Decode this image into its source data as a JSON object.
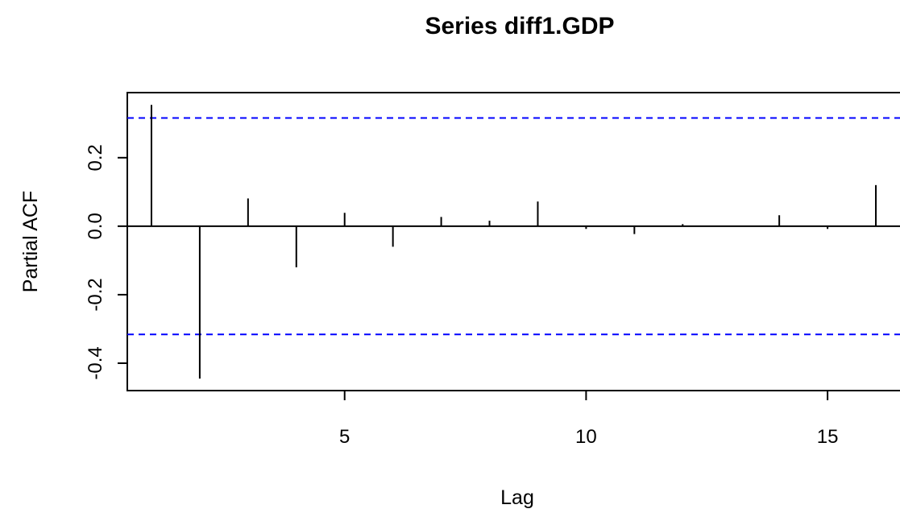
{
  "chart_data": {
    "type": "bar",
    "title": "Series  diff1.GDP",
    "xlabel": "Lag",
    "ylabel": "Partial ACF",
    "xlim": [
      0.5,
      16.5
    ],
    "ylim": [
      -0.48,
      0.39
    ],
    "x_ticks": [
      "5",
      "10",
      "15"
    ],
    "y_ticks": [
      "-0.4",
      "-0.2",
      "0.0",
      "0.2"
    ],
    "x": [
      1,
      2,
      3,
      4,
      5,
      6,
      7,
      8,
      9,
      10,
      11,
      12,
      13,
      14,
      15,
      16
    ],
    "values": [
      0.354,
      -0.445,
      0.081,
      -0.12,
      0.039,
      -0.06,
      0.027,
      0.016,
      0.072,
      -0.008,
      -0.023,
      0.006,
      0.0,
      0.032,
      -0.008,
      0.12
    ],
    "confidence_bound": 0.316,
    "confidence_line_color": "#0000ff",
    "spike_color": "#000000",
    "grid": false,
    "legend": "none"
  }
}
